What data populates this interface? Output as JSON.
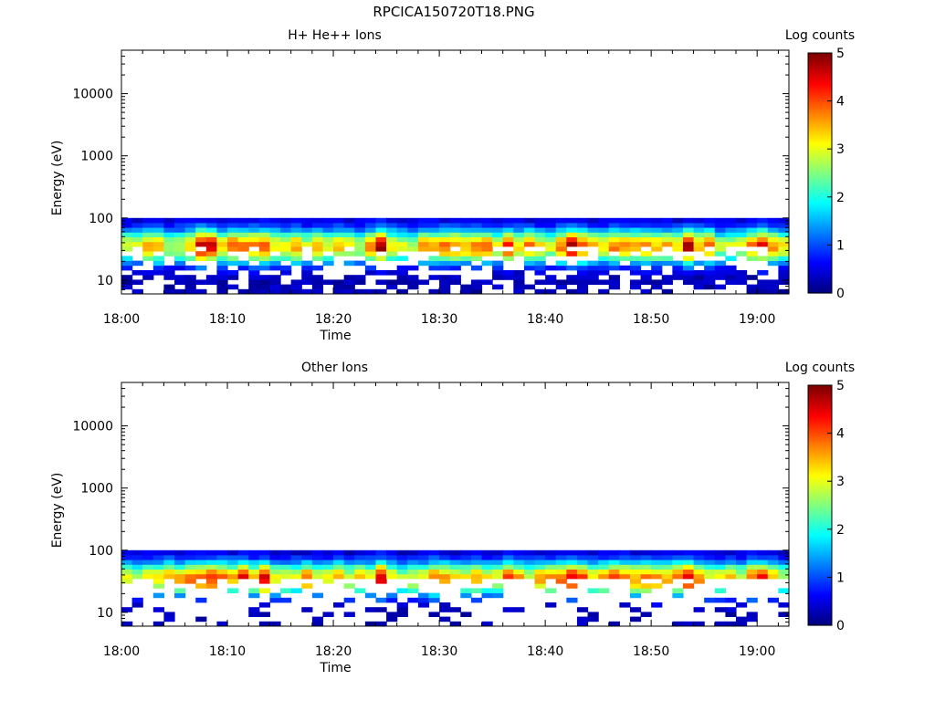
{
  "figure_title": "RPCICA150720T18.PNG",
  "chart_data": [
    {
      "type": "heatmap",
      "title": "H+ He++ Ions",
      "xlabel": "Time",
      "ylabel": "Energy (eV)",
      "x_ticks": [
        "18:00",
        "18:10",
        "18:20",
        "18:30",
        "18:40",
        "18:50",
        "19:00"
      ],
      "y_ticks": [
        "10",
        "100",
        "1000",
        "10000"
      ],
      "y_scale": "log",
      "ylim": [
        6,
        50000
      ],
      "xlim": [
        "18:00",
        "19:03"
      ],
      "colorbar_label": "Log counts",
      "colorbar_ticks": [
        "0",
        "1",
        "2",
        "3",
        "4",
        "5"
      ],
      "z_range": [
        0,
        5
      ],
      "energy_range_observed": [
        6,
        100
      ],
      "peak_energy_eV": 35,
      "peak_log_counts": 3.3,
      "bright_times": [
        "18:07",
        "18:08",
        "18:11",
        "18:13",
        "18:24",
        "18:36",
        "18:42",
        "18:46",
        "18:53",
        "19:00"
      ],
      "bright_log_counts": 4.3,
      "low_energy_fill": 0.6
    },
    {
      "type": "heatmap",
      "title": "Other Ions",
      "xlabel": "Time",
      "ylabel": "Energy (eV)",
      "x_ticks": [
        "18:00",
        "18:10",
        "18:20",
        "18:30",
        "18:40",
        "18:50",
        "19:00"
      ],
      "y_ticks": [
        "10",
        "100",
        "1000",
        "10000"
      ],
      "y_scale": "log",
      "ylim": [
        6,
        50000
      ],
      "xlim": [
        "18:00",
        "19:03"
      ],
      "colorbar_label": "Log counts",
      "colorbar_ticks": [
        "0",
        "1",
        "2",
        "3",
        "4",
        "5"
      ],
      "z_range": [
        0,
        5
      ],
      "energy_range_observed": [
        6,
        100
      ],
      "peak_energy_eV": 35,
      "peak_log_counts": 3.3,
      "bright_times": [
        "18:07",
        "18:08",
        "18:11",
        "18:13",
        "18:24",
        "18:36",
        "18:42",
        "18:46",
        "18:53",
        "19:00"
      ],
      "bright_log_counts": 4.3,
      "low_energy_fill": 0.25
    }
  ]
}
